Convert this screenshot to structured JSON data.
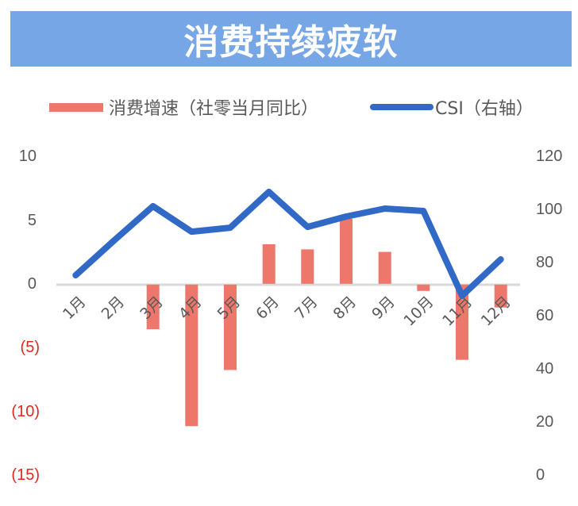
{
  "title": "消费持续疲软",
  "colors": {
    "banner_bg": "#77a6e6",
    "bar": "#ec776a",
    "line": "#3169c6",
    "axis": "#d9d9d9",
    "tick_text": "#595959",
    "negative_tick": "#e02a1f"
  },
  "legend": [
    {
      "label": "消费增速（社零当月同比）",
      "type": "bar",
      "color": "#ec776a"
    },
    {
      "label": "CSI（右轴）",
      "type": "line",
      "color": "#3169c6"
    }
  ],
  "left_axis": {
    "ticks": [
      {
        "label": "10",
        "value": 10
      },
      {
        "label": "5",
        "value": 5
      },
      {
        "label": "0",
        "value": 0
      },
      {
        "label": "(5)",
        "value": -5
      },
      {
        "label": "(10)",
        "value": -10
      },
      {
        "label": "(15)",
        "value": -15
      }
    ]
  },
  "right_axis": {
    "ticks": [
      {
        "label": "120",
        "value": 120
      },
      {
        "label": "100",
        "value": 100
      },
      {
        "label": "80",
        "value": 80
      },
      {
        "label": "60",
        "value": 60
      },
      {
        "label": "40",
        "value": 40
      },
      {
        "label": "20",
        "value": 20
      },
      {
        "label": "0",
        "value": 0
      }
    ]
  },
  "chart_data": {
    "type": "bar+line",
    "title": "消费持续疲软",
    "categories": [
      "1月",
      "2月",
      "3月",
      "4月",
      "5月",
      "6月",
      "7月",
      "8月",
      "9月",
      "10月",
      "11月",
      "12月"
    ],
    "series": [
      {
        "name": "消费增速（社零当月同比）",
        "type": "bar",
        "axis": "left",
        "values": [
          null,
          null,
          -3.5,
          -11.1,
          -6.7,
          3.1,
          2.7,
          5.1,
          2.5,
          -0.5,
          -5.9,
          -1.8
        ]
      },
      {
        "name": "CSI（右轴）",
        "type": "line",
        "axis": "right",
        "values": [
          75.2,
          88.4,
          101.2,
          91.6,
          93.1,
          106.6,
          93.4,
          97.3,
          100.3,
          99.4,
          67.5,
          81.2
        ]
      }
    ],
    "xlabel": "",
    "ylabel_left": "",
    "ylabel_right": "",
    "ylim_left": [
      -15,
      10
    ],
    "ylim_right": [
      0,
      120
    ],
    "grid": false,
    "legend_position": "top",
    "x_label_rotation": -45
  }
}
